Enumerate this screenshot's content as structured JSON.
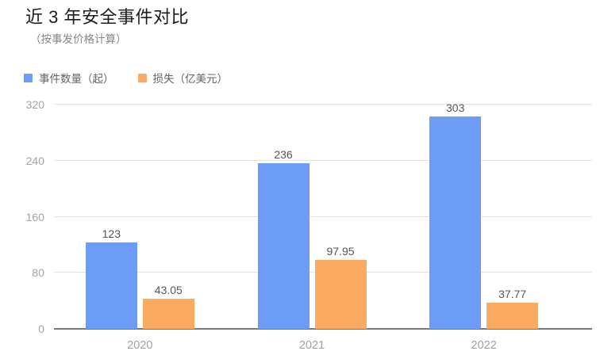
{
  "header": {
    "title": "近 3 年安全事件对比",
    "subtitle": "（按事发价格计算）"
  },
  "colors": {
    "series_blue": "#6c9cf5",
    "series_orange": "#fbaa62",
    "gridline": "#e3e3e3",
    "axis_line": "#77777b",
    "tick_label": "#a3a3a3",
    "value_label": "#555555",
    "title_text": "#1c1c1c",
    "subtitle_text": "#878787",
    "legend_text": "#646464"
  },
  "chart_data": {
    "type": "bar",
    "title": "近 3 年安全事件对比",
    "subtitle": "（按事发价格计算）",
    "categories": [
      "2020",
      "2021",
      "2022"
    ],
    "series": [
      {
        "name": "事件数量（起）",
        "color": "#6c9cf5",
        "values": [
          123,
          236,
          303
        ]
      },
      {
        "name": "损失（亿美元）",
        "color": "#fbaa62",
        "values": [
          43.05,
          97.95,
          37.77
        ]
      }
    ],
    "ylim": [
      0,
      320
    ],
    "yticks": [
      0,
      80,
      160,
      240,
      320
    ],
    "grid": true,
    "legend_position": "top-left",
    "value_labels": true
  }
}
